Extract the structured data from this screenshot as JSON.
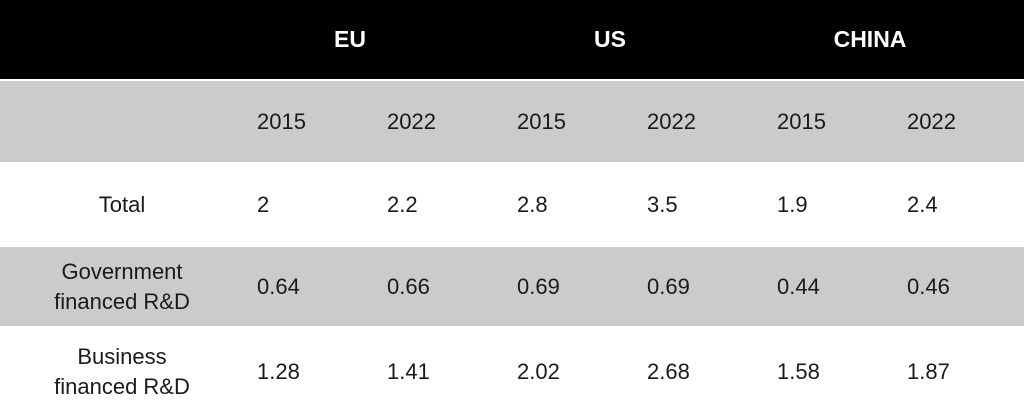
{
  "table": {
    "group_headers": [
      "EU",
      "US",
      "CHINA"
    ],
    "year_headers": [
      "2015",
      "2022",
      "2015",
      "2022",
      "2015",
      "2022"
    ],
    "rows": [
      {
        "label": "Total",
        "values": [
          "2",
          "2.2",
          "2.8",
          "3.5",
          "1.9",
          "2.4"
        ]
      },
      {
        "label": "Government\nfinanced R&D",
        "values": [
          "0.64",
          "0.66",
          "0.69",
          "0.69",
          "0.44",
          "0.46"
        ]
      },
      {
        "label": "Business\nfinanced R&D",
        "values": [
          "1.28",
          "1.41",
          "2.02",
          "2.68",
          "1.58",
          "1.87"
        ]
      }
    ],
    "colors": {
      "header_bg": "#000000",
      "header_text": "#ffffff",
      "band_bg": "#cbcbcb",
      "body_bg": "#ffffff",
      "body_text": "#1a1a1a",
      "separator": "#ffffff"
    }
  },
  "chart_data": {
    "type": "table",
    "column_groups": [
      "EU",
      "US",
      "CHINA"
    ],
    "column_years": [
      "2015",
      "2022"
    ],
    "columns": [
      "EU 2015",
      "EU 2022",
      "US 2015",
      "US 2022",
      "CHINA 2015",
      "CHINA 2022"
    ],
    "rows": [
      {
        "label": "Total",
        "values": [
          2,
          2.2,
          2.8,
          3.5,
          1.9,
          2.4
        ]
      },
      {
        "label": "Government financed R&D",
        "values": [
          0.64,
          0.66,
          0.69,
          0.69,
          0.44,
          0.46
        ]
      },
      {
        "label": "Business financed R&D",
        "values": [
          1.28,
          1.41,
          2.02,
          2.68,
          1.58,
          1.87
        ]
      }
    ]
  }
}
